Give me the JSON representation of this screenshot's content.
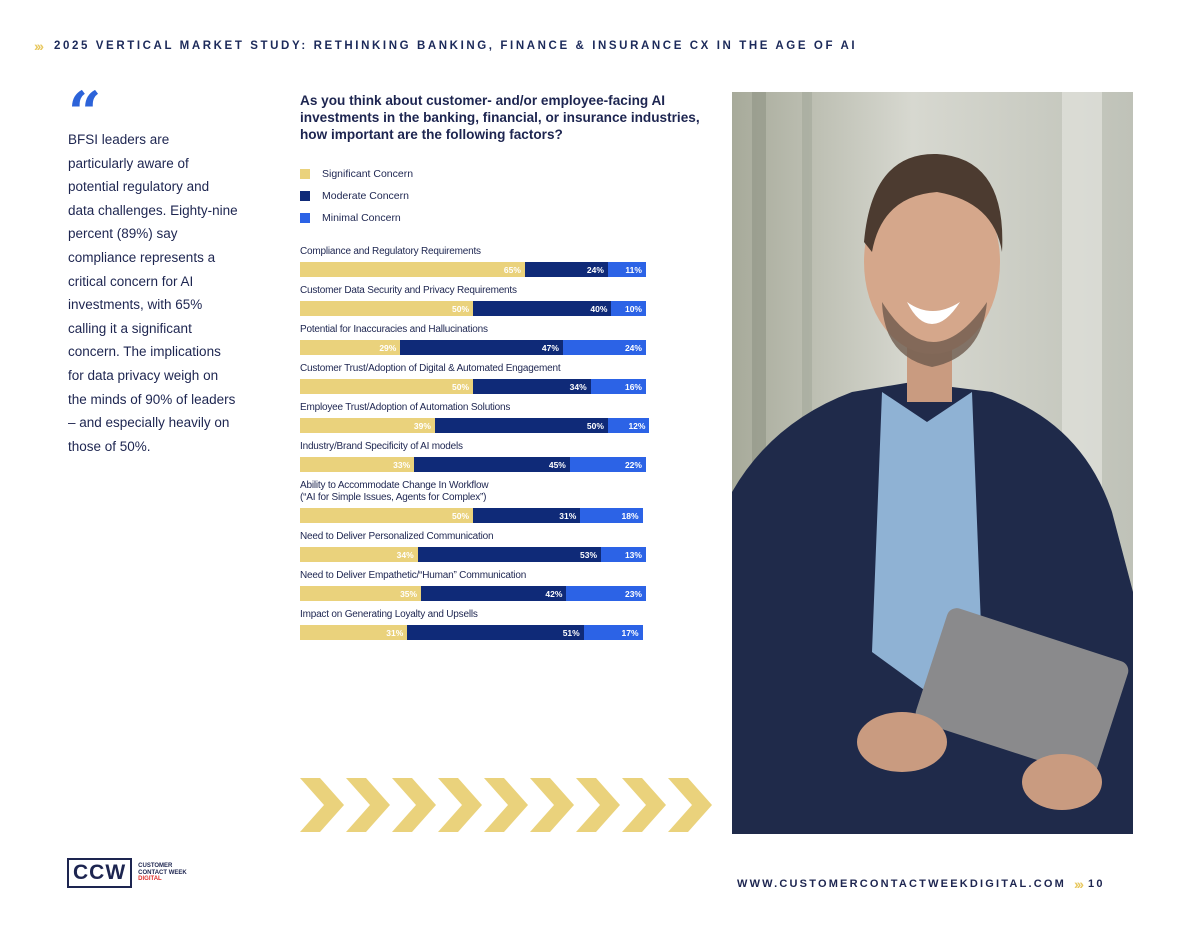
{
  "header": {
    "chevrons": "›››",
    "title": "2025 VERTICAL MARKET STUDY: RETHINKING BANKING, FINANCE & INSURANCE CX IN THE AGE OF AI"
  },
  "sidebar": {
    "quote_mark": "“",
    "text": "BFSI leaders are particularly aware of potential regulatory and data challenges. Eighty-nine percent (89%) say compliance represents a critical concern for AI investments, with 65% calling it a significant concern. The implications for data privacy weigh on the minds of 90% of leaders – and especially heavily on those of 50%."
  },
  "colors": {
    "significant": "#ead27c",
    "moderate": "#0f2a78",
    "minimal": "#2c63e6",
    "accent": "#e8c860"
  },
  "chart_data": {
    "type": "bar",
    "orientation": "horizontal-stacked",
    "title": "As you think about customer- and/or employee-facing AI investments in the banking, financial, or insurance industries, how important are the following factors?",
    "series_names": [
      "Significant Concern",
      "Moderate Concern",
      "Minimal Concern"
    ],
    "legend_position": "top-left",
    "unit": "%",
    "categories": [
      "Compliance and Regulatory Requirements",
      "Customer Data Security and Privacy Requirements",
      "Potential for Inaccuracies and Hallucinations",
      "Customer Trust/Adoption of Digital & Automated Engagement",
      "Employee Trust/Adoption of Automation Solutions",
      "Industry/Brand Specificity of AI models",
      "Ability to Accommodate Change In Workflow\n(“AI for Simple Issues, Agents for Complex”)",
      "Need to Deliver Personalized Communication",
      "Need to Deliver Empathetic/“Human” Communication",
      "Impact on Generating Loyalty and Upsells"
    ],
    "series": [
      {
        "name": "Significant Concern",
        "values": [
          65,
          50,
          29,
          50,
          39,
          33,
          50,
          34,
          35,
          31
        ]
      },
      {
        "name": "Moderate Concern",
        "values": [
          24,
          40,
          47,
          34,
          50,
          45,
          31,
          53,
          42,
          51
        ]
      },
      {
        "name": "Minimal Concern",
        "values": [
          11,
          10,
          24,
          16,
          12,
          22,
          18,
          13,
          23,
          17
        ]
      }
    ]
  },
  "footer": {
    "url": "WWW.CUSTOMERCONTACTWEEKDIGITAL.COM",
    "chevrons": "›››",
    "page_number": "10"
  },
  "logo": {
    "mark": "CCW",
    "line1": "CUSTOMER",
    "line2": "CONTACT WEEK",
    "line3": "DIGITAL"
  },
  "photo": {
    "subject": "smiling-businessman-with-tablet"
  }
}
